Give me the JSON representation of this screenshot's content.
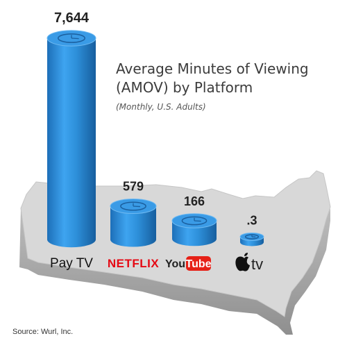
{
  "chart_data": {
    "type": "bar",
    "title": "Average Minutes of Viewing (AMOV) by Platform",
    "title_lines": [
      "Average Minutes of Viewing",
      "(AMOV) by Platform"
    ],
    "subtitle": "(Monthly, U.S. Adults)",
    "categories": [
      "Pay TV",
      "NETFLIX",
      "YouTube",
      "tv"
    ],
    "values": [
      7644,
      579,
      166,
      0.3
    ],
    "value_labels": [
      "7,644",
      "579",
      "166",
      ".3"
    ],
    "series_colors": [
      "#2d8fd9"
    ],
    "background_shape": "united-states-map",
    "icon": "clock-icon",
    "grid": false,
    "legend": "none"
  },
  "brand_colors": {
    "netflix": "#e50914",
    "youtube_red": "#e62117",
    "bar_blue": "#2d8fd9",
    "map_gray": "#d9d9d9"
  },
  "source": "Source: Wurl, Inc."
}
